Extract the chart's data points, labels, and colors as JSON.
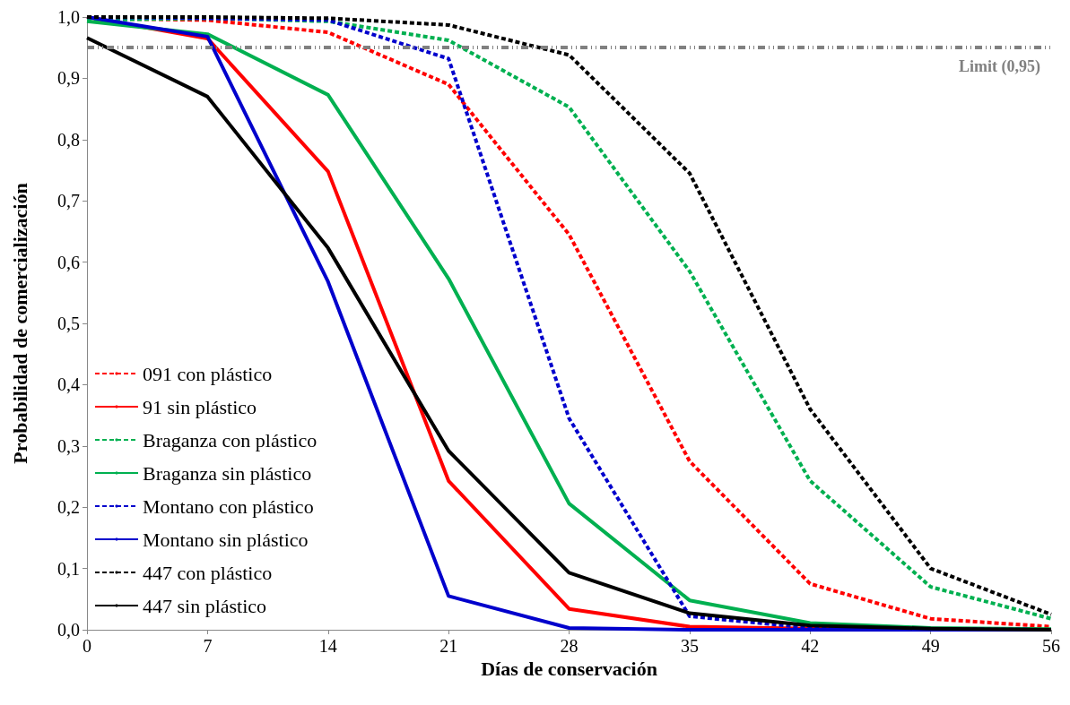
{
  "chart_data": {
    "type": "line",
    "xlabel": "Días de conservación",
    "ylabel": "Probabilidad de comercialización",
    "x": [
      0,
      7,
      14,
      21,
      28,
      35,
      42,
      49,
      56
    ],
    "xlim": [
      0,
      56
    ],
    "xticks": [
      0,
      7,
      14,
      21,
      28,
      35,
      42,
      49,
      56
    ],
    "ylim": [
      0,
      1
    ],
    "yticks": [
      {
        "value": 0,
        "label": "0,0"
      },
      {
        "value": 0.1,
        "label": "0,1"
      },
      {
        "value": 0.2,
        "label": "0,2"
      },
      {
        "value": 0.3,
        "label": "0,3"
      },
      {
        "value": 0.4,
        "label": "0,4"
      },
      {
        "value": 0.5,
        "label": "0,5"
      },
      {
        "value": 0.6,
        "label": "0,6"
      },
      {
        "value": 0.7,
        "label": "0,7"
      },
      {
        "value": 0.8,
        "label": "0,8"
      },
      {
        "value": 0.9,
        "label": "0,9"
      },
      {
        "value": 1,
        "label": "1,0"
      }
    ],
    "grid": false,
    "legend": "bottom left",
    "marker": "none",
    "ref_lines": [
      {
        "axis": "y",
        "value": 0.95,
        "label": "Limit (0,95)",
        "color": "#808080",
        "line_style": "dashdotdot"
      }
    ],
    "series": [
      {
        "name": "091 con plástico",
        "color": "#ff0000",
        "line_style": "dashed",
        "values": [
          0.998,
          0.995,
          0.975,
          0.89,
          0.645,
          0.275,
          0.075,
          0.018,
          0.005
        ]
      },
      {
        "name": "91 sin plástico",
        "color": "#ff0000",
        "line_style": "solid",
        "values": [
          1.0,
          0.965,
          0.748,
          0.243,
          0.034,
          0.005,
          0.002,
          0.001,
          0.0
        ]
      },
      {
        "name": "Braganza con plástico",
        "color": "#00b050",
        "line_style": "dashed",
        "values": [
          0.995,
          0.998,
          0.993,
          0.962,
          0.853,
          0.585,
          0.243,
          0.07,
          0.018
        ]
      },
      {
        "name": "Braganza sin plástico",
        "color": "#00b050",
        "line_style": "solid",
        "values": [
          0.993,
          0.972,
          0.873,
          0.573,
          0.206,
          0.048,
          0.011,
          0.003,
          0.001
        ]
      },
      {
        "name": "Montano con plástico",
        "color": "#0000cc",
        "line_style": "dashed",
        "values": [
          1.0,
          0.998,
          0.995,
          0.932,
          0.345,
          0.022,
          0.003,
          0.001,
          0.0
        ]
      },
      {
        "name": "Montano sin plástico",
        "color": "#0000cc",
        "line_style": "solid",
        "values": [
          1.0,
          0.968,
          0.568,
          0.055,
          0.003,
          0.0,
          0.0,
          0.0,
          0.0
        ]
      },
      {
        "name": "447 con plástico",
        "color": "#000000",
        "line_style": "dashed",
        "values": [
          1.0,
          1.0,
          0.998,
          0.987,
          0.938,
          0.745,
          0.36,
          0.1,
          0.025
        ]
      },
      {
        "name": "447 sin plástico",
        "color": "#000000",
        "line_style": "solid",
        "values": [
          0.966,
          0.87,
          0.623,
          0.292,
          0.093,
          0.027,
          0.007,
          0.002,
          0.0
        ]
      }
    ]
  }
}
